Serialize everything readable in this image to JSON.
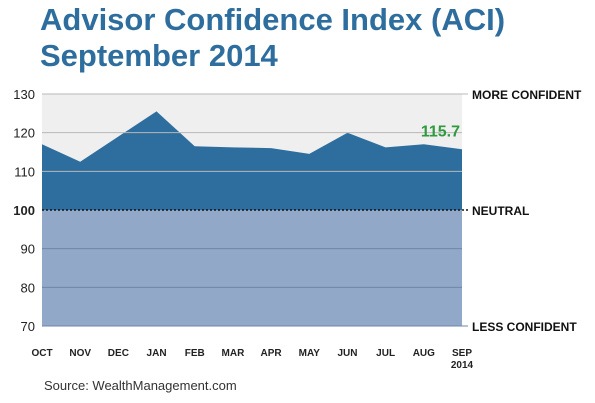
{
  "title_line1": "Advisor Confidence Index (ACI)",
  "title_line2": "September 2014",
  "source": "Source: WealthManagement.com",
  "chart_data": {
    "type": "area",
    "categories": [
      "OCT",
      "NOV",
      "DEC",
      "JAN",
      "FEB",
      "MAR",
      "APR",
      "MAY",
      "JUN",
      "JUL",
      "AUG",
      "SEP"
    ],
    "category_sublabels": {
      "SEP": "2014"
    },
    "values": [
      117.0,
      112.5,
      119.0,
      125.5,
      116.5,
      116.2,
      116.0,
      114.5,
      120.0,
      116.2,
      117.0,
      115.7
    ],
    "y_ticks": [
      70,
      80,
      90,
      100,
      110,
      120,
      130
    ],
    "ylim": [
      70,
      130
    ],
    "grid": true,
    "annotation": {
      "label": "115.7",
      "category": "SEP"
    },
    "right_labels": [
      {
        "text": "MORE CONFIDENT",
        "value": 130
      },
      {
        "text": "NEUTRAL",
        "value": 100
      },
      {
        "text": "LESS CONFIDENT",
        "value": 70
      }
    ],
    "colors": {
      "above_neutral_fill": "#2e6e9e",
      "below_neutral_fill": "#91a8c8",
      "plot_background": "#efefef",
      "annotation": "#2f9a3f",
      "title": "#2e6e9e"
    }
  }
}
